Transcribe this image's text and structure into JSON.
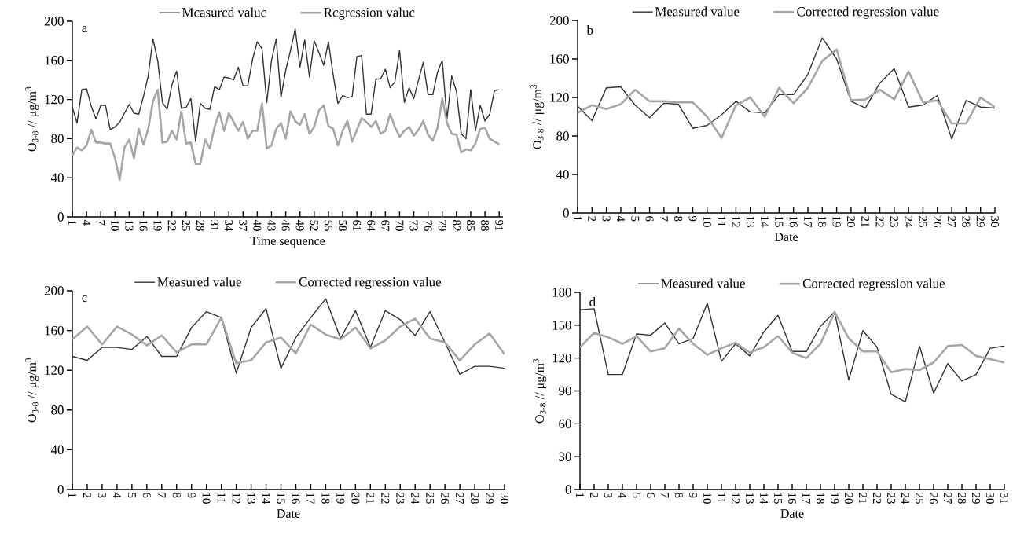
{
  "chart_data": [
    {
      "type": "line",
      "xlabel": "Time sequence",
      "ylabel": "O$_{3-8}$ // μg/m$^{3}$",
      "annotations": [
        "a"
      ],
      "legend": "top",
      "categories": [
        "1",
        null,
        null,
        "4",
        null,
        null,
        "7",
        null,
        null,
        "10",
        null,
        null,
        "13",
        null,
        null,
        "16",
        null,
        null,
        "19",
        null,
        null,
        "22",
        null,
        null,
        "25",
        null,
        null,
        "28",
        null,
        null,
        "31",
        null,
        null,
        "34",
        null,
        null,
        "37",
        null,
        null,
        "40",
        null,
        null,
        "43",
        null,
        null,
        "46",
        null,
        null,
        "49",
        null,
        null,
        "52",
        null,
        null,
        "55",
        null,
        null,
        "58",
        null,
        null,
        "61",
        null,
        null,
        "64",
        null,
        null,
        "67",
        null,
        null,
        "70",
        null,
        null,
        "73",
        null,
        null,
        "76",
        null,
        null,
        "79",
        null,
        null,
        "82",
        null,
        null,
        "85",
        null,
        null,
        "88",
        null,
        null,
        "91"
      ],
      "ylim": [
        0,
        200
      ],
      "yticks": [
        0,
        40,
        80,
        120,
        160,
        200
      ],
      "series": [
        {
          "name": "Mcasurcd  valuc",
          "color": "#333333",
          "values": [
            112,
            96,
            130,
            131,
            113,
            100,
            114,
            114,
            89,
            92,
            97,
            106,
            115,
            106,
            105,
            123,
            144,
            182,
            160,
            117,
            110,
            135,
            149,
            111,
            112,
            121,
            77,
            116,
            111,
            110,
            133,
            130,
            143,
            142,
            140,
            153,
            134,
            134,
            161,
            179,
            172,
            117,
            160,
            182,
            122,
            150,
            170,
            192,
            153,
            181,
            143,
            180,
            168,
            155,
            179,
            145,
            116,
            124,
            122,
            123,
            164,
            165,
            105,
            105,
            141,
            141,
            151,
            132,
            138,
            170,
            117,
            132,
            121,
            140,
            158,
            125,
            125,
            148,
            160,
            100,
            144,
            128,
            85,
            80,
            130,
            88,
            114,
            98,
            105,
            129,
            130
          ]
        },
        {
          "name": "Rcgrcssion valuc",
          "color": "#a6a6a6",
          "values": [
            63,
            71,
            68,
            73,
            89,
            76,
            76,
            75,
            75,
            60,
            38,
            71,
            79,
            60,
            90,
            74,
            90,
            118,
            130,
            76,
            77,
            88,
            79,
            108,
            75,
            76,
            54,
            54,
            79,
            70,
            92,
            107,
            88,
            106,
            97,
            88,
            97,
            80,
            88,
            88,
            116,
            70,
            73,
            90,
            96,
            80,
            108,
            98,
            94,
            105,
            85,
            92,
            109,
            114,
            93,
            90,
            73,
            88,
            98,
            77,
            89,
            101,
            97,
            92,
            98,
            85,
            88,
            105,
            92,
            82,
            88,
            92,
            83,
            89,
            98,
            84,
            78,
            91,
            121,
            96,
            85,
            84,
            66,
            69,
            68,
            75,
            90,
            91,
            80,
            77,
            74
          ]
        }
      ]
    },
    {
      "type": "line",
      "xlabel": "Date",
      "ylabel": "O$_{3-8}$ // μg/m$^{3}$",
      "annotations": [
        "b"
      ],
      "legend": "top",
      "categories": [
        "1",
        "2",
        "3",
        "4",
        "5",
        "6",
        "7",
        "8",
        "9",
        "10",
        "11",
        "12",
        "13",
        "14",
        "15",
        "16",
        "17",
        "18",
        "19",
        "20",
        "21",
        "22",
        "23",
        "24",
        "25",
        "26",
        "27",
        "28",
        "29",
        "30"
      ],
      "ylim": [
        0,
        200
      ],
      "yticks": [
        0,
        40,
        80,
        120,
        160,
        200
      ],
      "series": [
        {
          "name": "Measured value",
          "color": "#333333",
          "values": [
            111,
            96,
            130,
            131,
            112,
            99,
            114,
            113,
            88,
            91,
            102,
            116,
            105,
            104,
            123,
            123,
            144,
            182,
            160,
            116,
            109,
            135,
            150,
            110,
            112,
            122,
            77,
            117,
            110,
            109
          ]
        },
        {
          "name": "Corrected regression value",
          "color": "#a6a6a6",
          "values": [
            104,
            112,
            108,
            113,
            128,
            116,
            116,
            115,
            115,
            100,
            78,
            112,
            120,
            100,
            130,
            114,
            130,
            158,
            170,
            117,
            118,
            128,
            118,
            147,
            115,
            117,
            93,
            93,
            120,
            110
          ]
        }
      ]
    },
    {
      "type": "line",
      "xlabel": "Date",
      "ylabel": "O$_{3-8}$ // μg/m$^{3}$",
      "annotations": [
        "c"
      ],
      "legend": "top",
      "categories": [
        "1",
        "2",
        "3",
        "4",
        "5",
        "6",
        "7",
        "8",
        "9",
        "10",
        "11",
        "12",
        "13",
        "14",
        "15",
        "16",
        "17",
        "18",
        "19",
        "20",
        "21",
        "22",
        "23",
        "24",
        "25",
        "26",
        "27",
        "28",
        "29",
        "30"
      ],
      "ylim": [
        0,
        200
      ],
      "yticks": [
        0,
        40,
        80,
        120,
        160,
        200
      ],
      "series": [
        {
          "name": "Measured value",
          "color": "#333333",
          "values": [
            134,
            130,
            143,
            143,
            141,
            154,
            134,
            134,
            163,
            179,
            173,
            117,
            163,
            182,
            122,
            153,
            173,
            192,
            152,
            180,
            143,
            180,
            171,
            155,
            179,
            148,
            116,
            124,
            124,
            122
          ]
        },
        {
          "name": "Corrected regression value",
          "color": "#a6a6a6",
          "values": [
            151,
            164,
            146,
            164,
            156,
            145,
            155,
            138,
            146,
            146,
            173,
            127,
            130,
            148,
            153,
            137,
            166,
            156,
            151,
            163,
            142,
            150,
            164,
            172,
            152,
            148,
            130,
            146,
            157,
            136
          ]
        }
      ]
    },
    {
      "type": "line",
      "xlabel": "Date",
      "ylabel": "O$_{3-8}$ // μg/m$^{3}$",
      "annotations": [
        "d"
      ],
      "legend": "top",
      "categories": [
        "1",
        "2",
        "3",
        "4",
        "5",
        "6",
        "7",
        "8",
        "9",
        "10",
        "11",
        "12",
        "13",
        "14",
        "15",
        "16",
        "17",
        "18",
        "19",
        "20",
        "21",
        "22",
        "23",
        "24",
        "25",
        "26",
        "27",
        "28",
        "29",
        "30",
        "31"
      ],
      "ylim": [
        0,
        180
      ],
      "yticks": [
        0,
        30,
        60,
        90,
        120,
        150,
        180
      ],
      "series": [
        {
          "name": "Measured value",
          "color": "#333333",
          "values": [
            164,
            165,
            105,
            105,
            142,
            141,
            152,
            133,
            138,
            170,
            117,
            133,
            122,
            144,
            159,
            126,
            126,
            149,
            162,
            100,
            145,
            130,
            87,
            80,
            131,
            88,
            115,
            99,
            105,
            129,
            131
          ]
        },
        {
          "name": "Corrected regression value",
          "color": "#a6a6a6",
          "values": [
            130,
            143,
            139,
            133,
            140,
            126,
            129,
            147,
            133,
            123,
            129,
            134,
            125,
            130,
            140,
            125,
            120,
            133,
            162,
            138,
            126,
            126,
            107,
            110,
            109,
            116,
            131,
            132,
            122,
            119,
            116
          ]
        }
      ]
    }
  ]
}
